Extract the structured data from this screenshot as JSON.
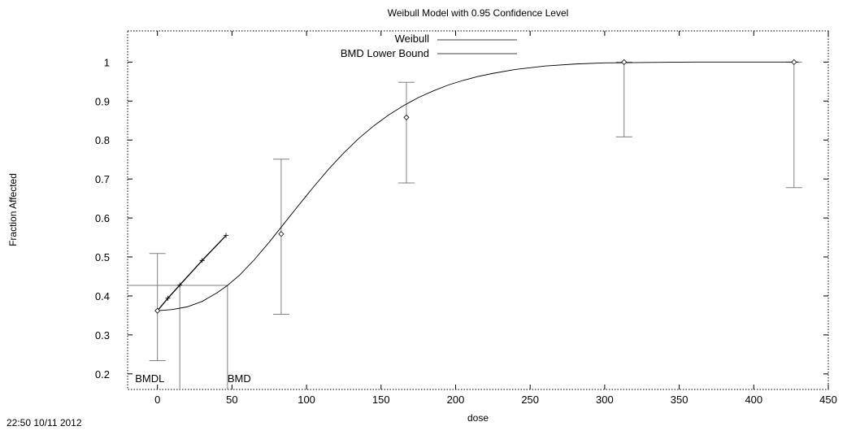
{
  "chart_data": {
    "type": "scatter",
    "title": "Weibull Model with 0.95 Confidence Level",
    "xlabel": "dose",
    "ylabel": "Fraction Affected",
    "xlim": [
      -20,
      450
    ],
    "ylim": [
      0.16,
      1.08
    ],
    "x_ticks": [
      0,
      50,
      100,
      150,
      200,
      250,
      300,
      350,
      400,
      450
    ],
    "y_ticks": [
      0.2,
      0.3,
      0.4,
      0.5,
      0.6,
      0.7,
      0.8,
      0.9,
      1
    ],
    "grid": false,
    "legend_position": "top-center",
    "legend": [
      "Weibull",
      "BMD Lower Bound"
    ],
    "observations": [
      {
        "x": 0,
        "y": 0.362,
        "lower": 0.234,
        "upper": 0.509
      },
      {
        "x": 83,
        "y": 0.559,
        "lower": 0.353,
        "upper": 0.751
      },
      {
        "x": 167,
        "y": 0.858,
        "lower": 0.69,
        "upper": 0.948
      },
      {
        "x": 313,
        "y": 1.0,
        "lower": 0.808,
        "upper": 1.0
      },
      {
        "x": 427,
        "y": 1.0,
        "lower": 0.678,
        "upper": 1.0
      }
    ],
    "weibull_curve": {
      "x": [
        0,
        10,
        20,
        30,
        40,
        47,
        55,
        65,
        75,
        85,
        95,
        105,
        115,
        125,
        135,
        145,
        155,
        165,
        175,
        185,
        195,
        205,
        215,
        225,
        240,
        260,
        280,
        300,
        330,
        360,
        400,
        430
      ],
      "y": [
        0.362,
        0.365,
        0.372,
        0.386,
        0.408,
        0.427,
        0.453,
        0.493,
        0.538,
        0.586,
        0.634,
        0.681,
        0.726,
        0.767,
        0.804,
        0.836,
        0.864,
        0.888,
        0.909,
        0.926,
        0.941,
        0.953,
        0.963,
        0.971,
        0.981,
        0.99,
        0.995,
        0.998,
        0.999,
        1.0,
        1.0,
        1.0
      ]
    },
    "bmd_lower_bound_line": {
      "x": [
        0,
        7,
        15,
        30,
        46
      ],
      "y": [
        0.362,
        0.394,
        0.428,
        0.491,
        0.555
      ]
    },
    "bmr_level": 0.427,
    "bmdl": {
      "label": "BMDL",
      "x": 15
    },
    "bmd": {
      "label": "BMD",
      "x": 47
    },
    "timestamp": "22:50 10/11 2012",
    "colors": {
      "curve": "#000000",
      "errorbar": "#808080",
      "axis": "#000000"
    }
  }
}
